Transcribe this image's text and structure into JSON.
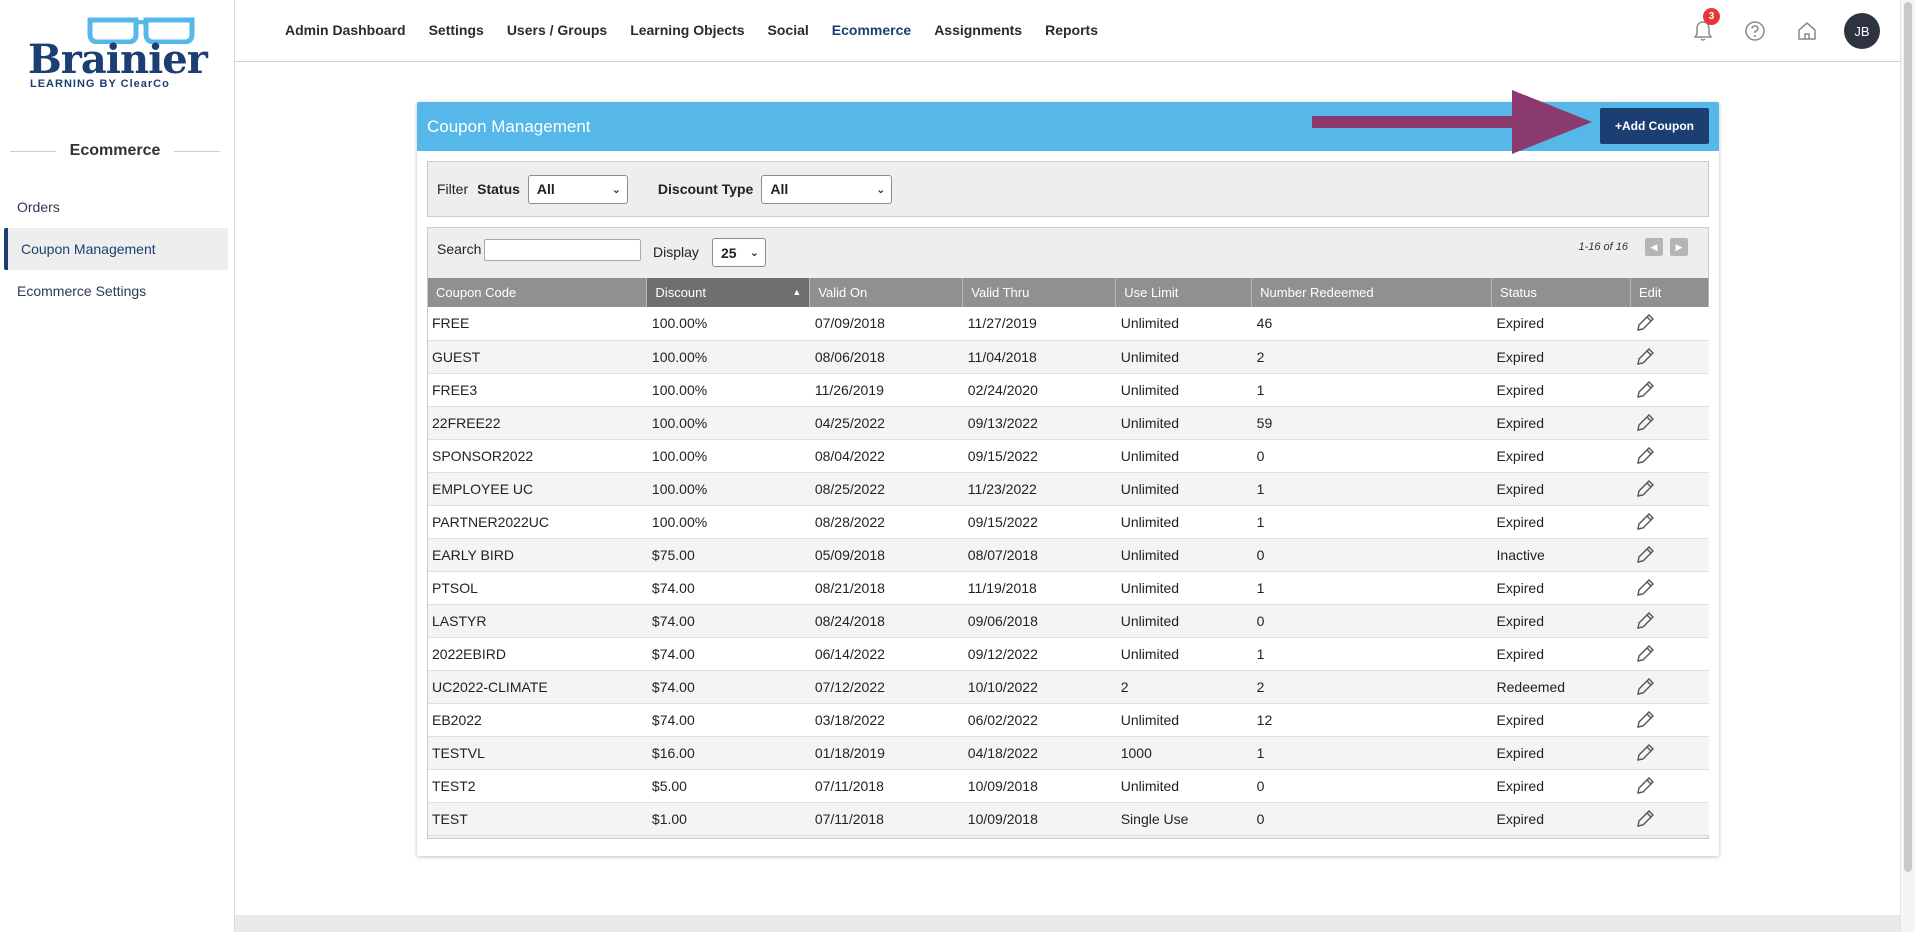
{
  "brand": {
    "name": "Brainier",
    "tagline": "LEARNING BY ClearCo"
  },
  "sidebar": {
    "heading": "Ecommerce",
    "items": [
      {
        "label": "Orders",
        "active": false
      },
      {
        "label": "Coupon Management",
        "active": true
      },
      {
        "label": "Ecommerce Settings",
        "active": false
      }
    ]
  },
  "topnav": {
    "items": [
      {
        "label": "Admin Dashboard",
        "active": false
      },
      {
        "label": "Settings",
        "active": false
      },
      {
        "label": "Users / Groups",
        "active": false
      },
      {
        "label": "Learning Objects",
        "active": false
      },
      {
        "label": "Social",
        "active": false
      },
      {
        "label": "Ecommerce",
        "active": true
      },
      {
        "label": "Assignments",
        "active": false
      },
      {
        "label": "Reports",
        "active": false
      }
    ],
    "notification_count": "3",
    "avatar_initials": "JB"
  },
  "panel": {
    "title": "Coupon Management",
    "add_button": "+Add Coupon"
  },
  "filter": {
    "label": "Filter",
    "status_label": "Status",
    "status_value": "All",
    "discount_type_label": "Discount Type",
    "discount_type_value": "All"
  },
  "toolbar": {
    "search_label": "Search",
    "search_value": "",
    "display_label": "Display",
    "display_value": "25",
    "pager_text": "1-16 of 16"
  },
  "table": {
    "columns": [
      "Coupon Code",
      "Discount",
      "Valid On",
      "Valid Thru",
      "Use Limit",
      "Number Redeemed",
      "Status",
      "Edit"
    ],
    "rows": [
      [
        "FREE",
        "100.00%",
        "07/09/2018",
        "11/27/2019",
        "Unlimited",
        "46",
        "Expired"
      ],
      [
        "GUEST",
        "100.00%",
        "08/06/2018",
        "11/04/2018",
        "Unlimited",
        "2",
        "Expired"
      ],
      [
        "FREE3",
        "100.00%",
        "11/26/2019",
        "02/24/2020",
        "Unlimited",
        "1",
        "Expired"
      ],
      [
        "22FREE22",
        "100.00%",
        "04/25/2022",
        "09/13/2022",
        "Unlimited",
        "59",
        "Expired"
      ],
      [
        "SPONSOR2022",
        "100.00%",
        "08/04/2022",
        "09/15/2022",
        "Unlimited",
        "0",
        "Expired"
      ],
      [
        "EMPLOYEE UC",
        "100.00%",
        "08/25/2022",
        "11/23/2022",
        "Unlimited",
        "1",
        "Expired"
      ],
      [
        "PARTNER2022UC",
        "100.00%",
        "08/28/2022",
        "09/15/2022",
        "Unlimited",
        "1",
        "Expired"
      ],
      [
        "EARLY BIRD",
        "$75.00",
        "05/09/2018",
        "08/07/2018",
        "Unlimited",
        "0",
        "Inactive"
      ],
      [
        "PTSOL",
        "$74.00",
        "08/21/2018",
        "11/19/2018",
        "Unlimited",
        "1",
        "Expired"
      ],
      [
        "LASTYR",
        "$74.00",
        "08/24/2018",
        "09/06/2018",
        "Unlimited",
        "0",
        "Expired"
      ],
      [
        "2022EBIRD",
        "$74.00",
        "06/14/2022",
        "09/12/2022",
        "Unlimited",
        "1",
        "Expired"
      ],
      [
        "UC2022-CLIMATE",
        "$74.00",
        "07/12/2022",
        "10/10/2022",
        "2",
        "2",
        "Redeemed"
      ],
      [
        "EB2022",
        "$74.00",
        "03/18/2022",
        "06/02/2022",
        "Unlimited",
        "12",
        "Expired"
      ],
      [
        "TESTVL",
        "$16.00",
        "01/18/2019",
        "04/18/2022",
        "1000",
        "1",
        "Expired"
      ],
      [
        "TEST2",
        "$5.00",
        "07/11/2018",
        "10/09/2018",
        "Unlimited",
        "0",
        "Expired"
      ],
      [
        "TEST",
        "$1.00",
        "07/11/2018",
        "10/09/2018",
        "Single Use",
        "0",
        "Expired"
      ]
    ]
  },
  "colors": {
    "header_blue": "#55b8e8",
    "brand_navy": "#1c3f73",
    "arrow_purple": "#8b3a6e",
    "badge_red": "#e53935"
  },
  "icons": [
    "glasses-logo-icon",
    "bell-icon",
    "help-icon",
    "home-icon",
    "sort-asc-icon",
    "prev-page-icon",
    "next-page-icon",
    "pencil-icon",
    "chevron-down-icon",
    "arrow-annotation"
  ]
}
